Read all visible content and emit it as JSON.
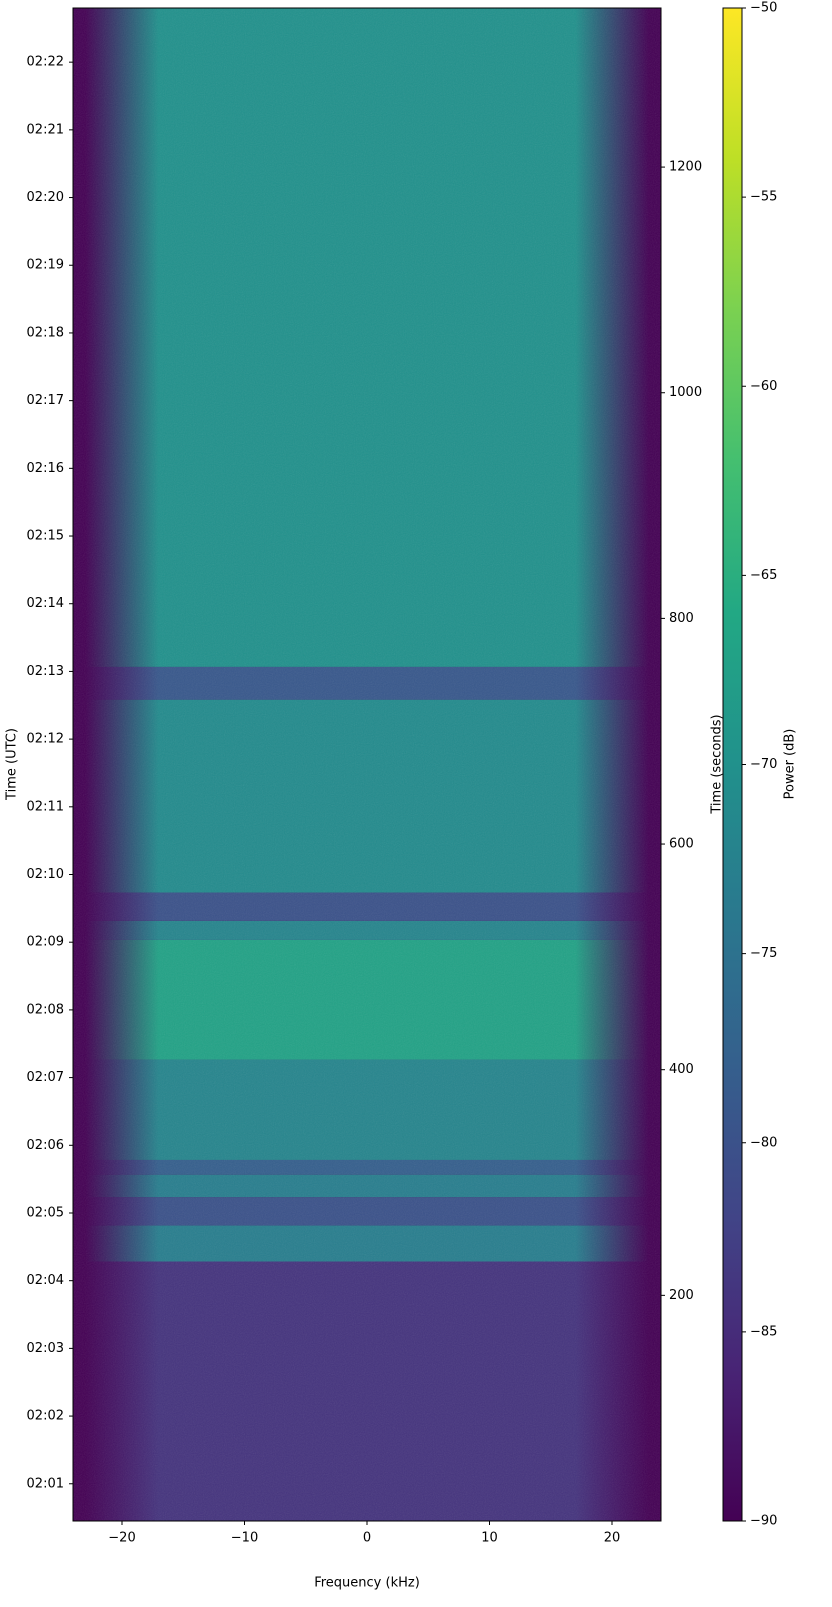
{
  "chart_data": {
    "type": "spectrogram",
    "colormap": "viridis",
    "xlabel": "Frequency (kHz)",
    "ylabel": "Time (UTC)",
    "y2label": "Time (seconds)",
    "colorbar_label": "Power (dB)",
    "xlim": [
      -24,
      24
    ],
    "xticks": [
      {
        "value": -20,
        "label": "−20"
      },
      {
        "value": -10,
        "label": "−10"
      },
      0,
      10,
      20
    ],
    "ylim": [
      0,
      1341
    ],
    "yticks": [
      {
        "value": 33,
        "label": "02:01"
      },
      {
        "value": 93,
        "label": "02:02"
      },
      {
        "value": 153,
        "label": "02:03"
      },
      {
        "value": 213,
        "label": "02:04"
      },
      {
        "value": 273,
        "label": "02:05"
      },
      {
        "value": 333,
        "label": "02:06"
      },
      {
        "value": 393,
        "label": "02:07"
      },
      {
        "value": 453,
        "label": "02:08"
      },
      {
        "value": 513,
        "label": "02:09"
      },
      {
        "value": 573,
        "label": "02:10"
      },
      {
        "value": 633,
        "label": "02:11"
      },
      {
        "value": 693,
        "label": "02:12"
      },
      {
        "value": 753,
        "label": "02:13"
      },
      {
        "value": 813,
        "label": "02:14"
      },
      {
        "value": 873,
        "label": "02:15"
      },
      {
        "value": 933,
        "label": "02:16"
      },
      {
        "value": 993,
        "label": "02:17"
      },
      {
        "value": 1053,
        "label": "02:18"
      },
      {
        "value": 1113,
        "label": "02:19"
      },
      {
        "value": 1173,
        "label": "02:20"
      },
      {
        "value": 1233,
        "label": "02:21"
      },
      {
        "value": 1293,
        "label": "02:22"
      }
    ],
    "y2lim": [
      0,
      1341
    ],
    "y2ticks": [
      200,
      400,
      600,
      800,
      1000,
      1200
    ],
    "clim": [
      -90,
      -50
    ],
    "cticks": [
      {
        "value": -90,
        "label": "−90"
      },
      {
        "value": -85,
        "label": "−85"
      },
      {
        "value": -80,
        "label": "−80"
      },
      {
        "value": -75,
        "label": "−75"
      },
      {
        "value": -70,
        "label": "−70"
      },
      {
        "value": -65,
        "label": "−65"
      },
      {
        "value": -60,
        "label": "−60"
      },
      {
        "value": -55,
        "label": "−55"
      },
      {
        "value": -50,
        "label": "−50"
      }
    ],
    "passband": [
      -23,
      23
    ],
    "segments": [
      {
        "start": 0,
        "end": 230,
        "power": -84
      },
      {
        "start": 230,
        "end": 262,
        "power": -73
      },
      {
        "start": 262,
        "end": 287,
        "power": -80
      },
      {
        "start": 287,
        "end": 307,
        "power": -73
      },
      {
        "start": 307,
        "end": 320,
        "power": -78
      },
      {
        "start": 320,
        "end": 409,
        "power": -72
      },
      {
        "start": 409,
        "end": 515,
        "power": -67
      },
      {
        "start": 515,
        "end": 532,
        "power": -72
      },
      {
        "start": 532,
        "end": 557,
        "power": -80
      },
      {
        "start": 557,
        "end": 728,
        "power": -71
      },
      {
        "start": 728,
        "end": 757,
        "power": -79
      },
      {
        "start": 757,
        "end": 1341,
        "power": -70
      }
    ]
  }
}
